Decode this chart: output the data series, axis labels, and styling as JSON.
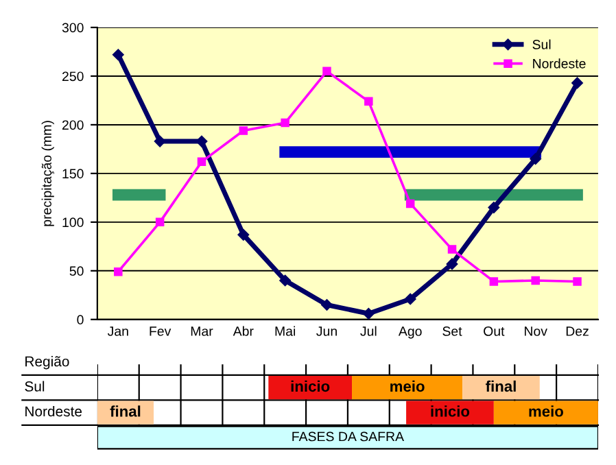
{
  "chart_data": {
    "type": "line",
    "ylabel": "precipitação (mm)",
    "categories": [
      "Jan",
      "Fev",
      "Mar",
      "Abr",
      "Mai",
      "Jun",
      "Jul",
      "Ago",
      "Set",
      "Out",
      "Nov",
      "Dez"
    ],
    "series": [
      {
        "name": "Sul",
        "color": "#000066",
        "marker": "diamond",
        "values": [
          272,
          183,
          183,
          87,
          40,
          15,
          6,
          21,
          57,
          115,
          165,
          243
        ]
      },
      {
        "name": "Nordeste",
        "color": "#ff00ff",
        "marker": "square",
        "values": [
          49,
          100,
          162,
          194,
          202,
          255,
          224,
          119,
          72,
          39,
          40,
          39
        ]
      },
      {
        "color": "#339966",
        "marker": "none",
        "values": [
          128,
          128,
          null,
          null,
          null,
          null,
          null,
          null,
          null,
          null,
          null,
          null
        ]
      },
      {
        "color": "#0000cc",
        "marker": "none",
        "values": [
          null,
          null,
          null,
          null,
          172,
          172,
          172,
          172,
          172,
          172,
          172,
          null
        ]
      },
      {
        "color": "#339966",
        "marker": "none",
        "values": [
          null,
          null,
          null,
          null,
          null,
          null,
          null,
          128,
          128,
          128,
          128,
          128
        ]
      }
    ],
    "ylim": [
      0,
      300
    ],
    "yticks": [
      0,
      50,
      100,
      150,
      200,
      250,
      300
    ],
    "grid": "y",
    "legend": "top right",
    "annotations": [
      "Região",
      "Sul",
      "Nordeste",
      "inicio",
      "meio",
      "final",
      "final",
      "inicio",
      "meio",
      "FASES DA SAFRA"
    ]
  }
}
